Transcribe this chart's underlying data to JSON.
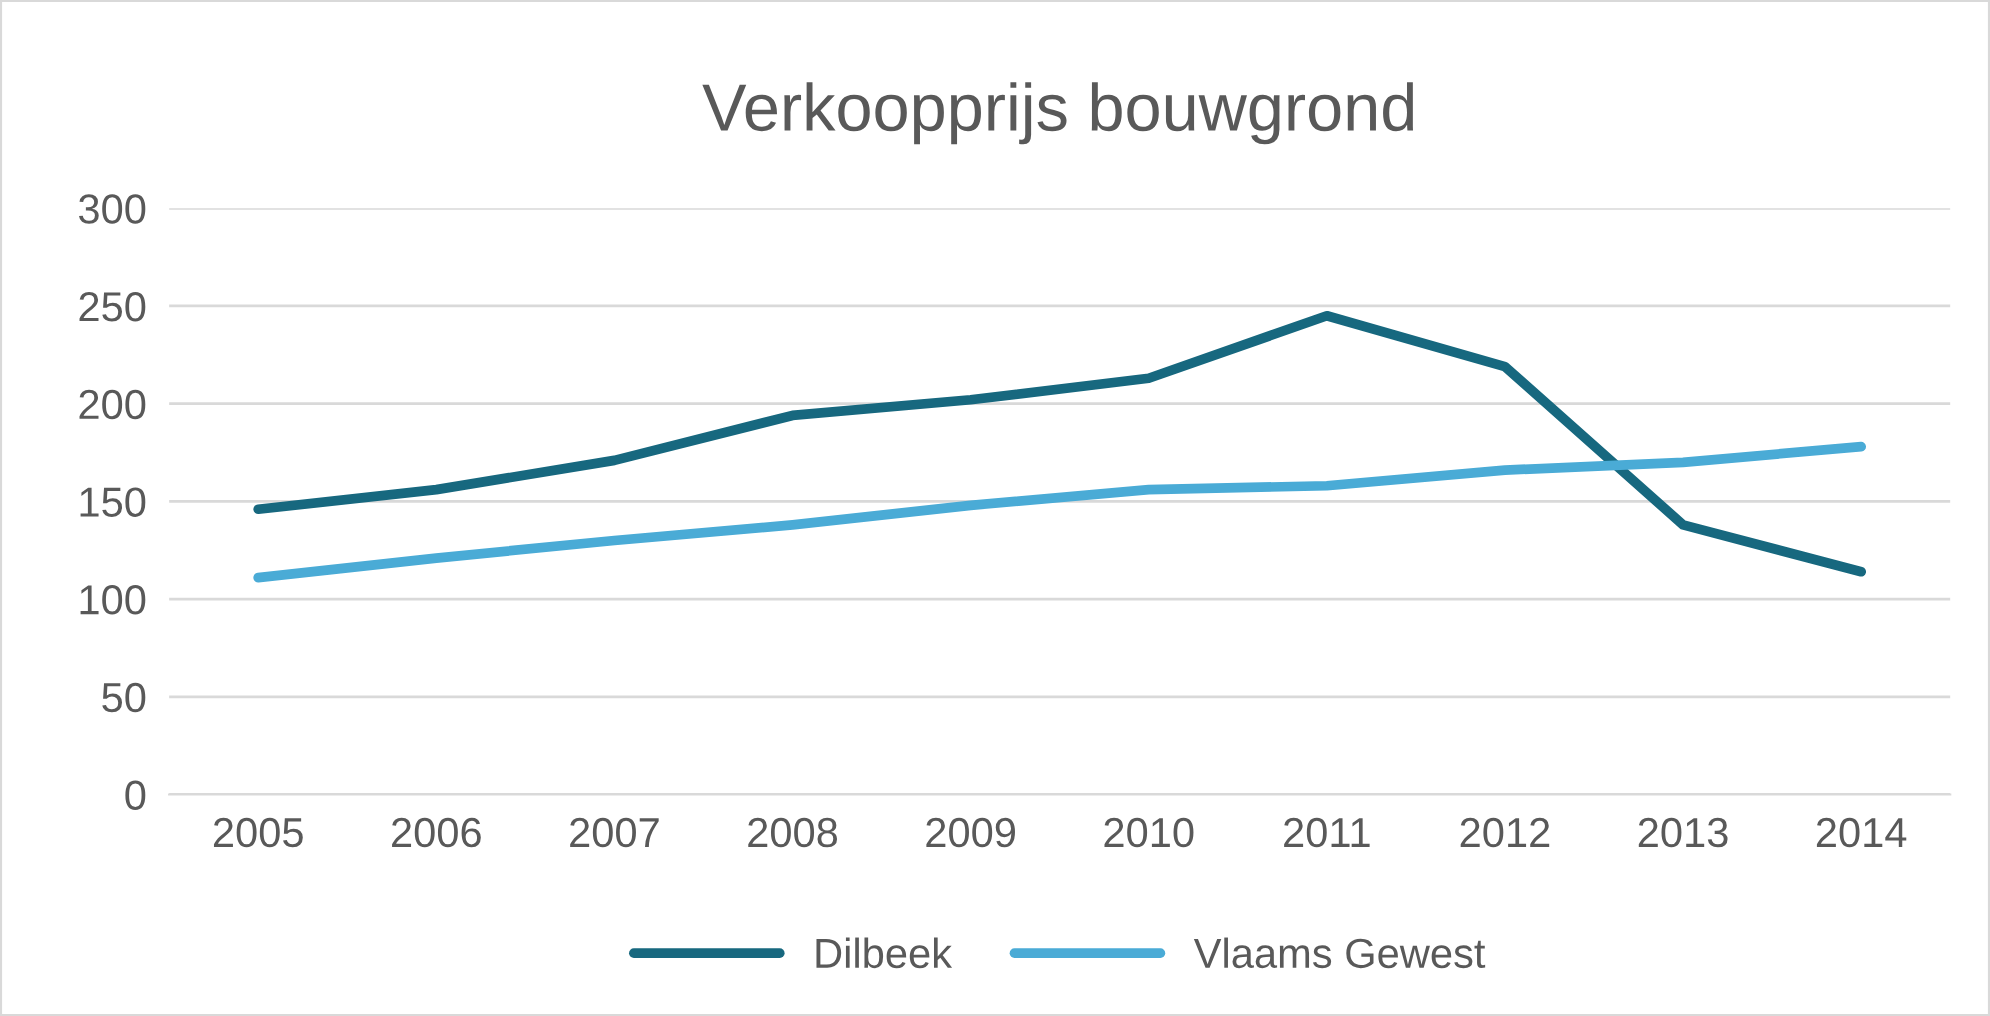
{
  "chart_data": {
    "type": "line",
    "title": "Verkoopprijs bouwgrond",
    "categories": [
      "2005",
      "2006",
      "2007",
      "2008",
      "2009",
      "2010",
      "2011",
      "2012",
      "2013",
      "2014"
    ],
    "series": [
      {
        "name": "Dilbeek",
        "color": "#17687f",
        "values": [
          146,
          156,
          171,
          194,
          202,
          213,
          245,
          219,
          138,
          114
        ]
      },
      {
        "name": "Vlaams Gewest",
        "color": "#4aabd6",
        "values": [
          111,
          121,
          130,
          138,
          148,
          156,
          158,
          166,
          170,
          178
        ]
      }
    ],
    "ylim": [
      0,
      300
    ],
    "yticks": [
      0,
      50,
      100,
      150,
      200,
      250,
      300
    ],
    "grid": "y",
    "legend": "bottom",
    "marker": "none",
    "line_style": "solid"
  }
}
